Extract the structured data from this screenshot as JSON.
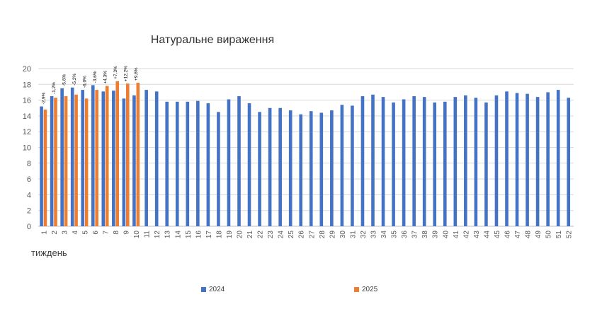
{
  "chart_data": {
    "type": "bar",
    "title": "Натуральне вираження",
    "xlabel": "тиждень",
    "ylabel": "",
    "ylim": [
      0,
      20
    ],
    "yticks": [
      0,
      2,
      4,
      6,
      8,
      10,
      12,
      14,
      16,
      18,
      20
    ],
    "grid": true,
    "legend_position": "bottom",
    "categories": [
      "1",
      "2",
      "3",
      "4",
      "5",
      "6",
      "7",
      "8",
      "9",
      "10",
      "11",
      "12",
      "13",
      "14",
      "15",
      "16",
      "17",
      "18",
      "19",
      "20",
      "21",
      "22",
      "23",
      "24",
      "25",
      "26",
      "27",
      "28",
      "29",
      "30",
      "31",
      "32",
      "33",
      "34",
      "35",
      "36",
      "37",
      "38",
      "39",
      "40",
      "41",
      "42",
      "43",
      "44",
      "45",
      "46",
      "47",
      "48",
      "49",
      "50",
      "51",
      "52"
    ],
    "series": [
      {
        "name": "2024",
        "color": "#4472C4",
        "values": [
          15.2,
          16.5,
          17.5,
          17.6,
          17.3,
          17.9,
          17.1,
          17.2,
          16.2,
          16.6,
          17.3,
          17.1,
          15.8,
          15.8,
          15.8,
          15.9,
          15.6,
          14.5,
          16.1,
          16.5,
          15.6,
          14.5,
          15.0,
          15.0,
          14.7,
          14.2,
          14.6,
          14.4,
          14.7,
          15.4,
          15.3,
          16.5,
          16.7,
          16.4,
          15.7,
          16.1,
          16.5,
          16.4,
          15.7,
          15.8,
          16.4,
          16.6,
          16.3,
          15.7,
          16.6,
          17.1,
          16.9,
          16.8,
          16.4,
          17.0,
          17.3,
          16.3
        ]
      },
      {
        "name": "2025",
        "color": "#ED7D31",
        "values": [
          14.8,
          16.3,
          16.5,
          16.7,
          16.2,
          17.3,
          17.8,
          18.4,
          18.1,
          18.2,
          null,
          null,
          null,
          null,
          null,
          null,
          null,
          null,
          null,
          null,
          null,
          null,
          null,
          null,
          null,
          null,
          null,
          null,
          null,
          null,
          null,
          null,
          null,
          null,
          null,
          null,
          null,
          null,
          null,
          null,
          null,
          null,
          null,
          null,
          null,
          null,
          null,
          null,
          null,
          null,
          null,
          null
        ]
      }
    ],
    "annotations": [
      "-2,9%",
      "-1,2%",
      "-5,6%",
      "-5,2%",
      "-6,0%",
      "-3,6%",
      "+4,3%",
      "+7,3%",
      "+12,2%",
      "+9,6%"
    ]
  }
}
